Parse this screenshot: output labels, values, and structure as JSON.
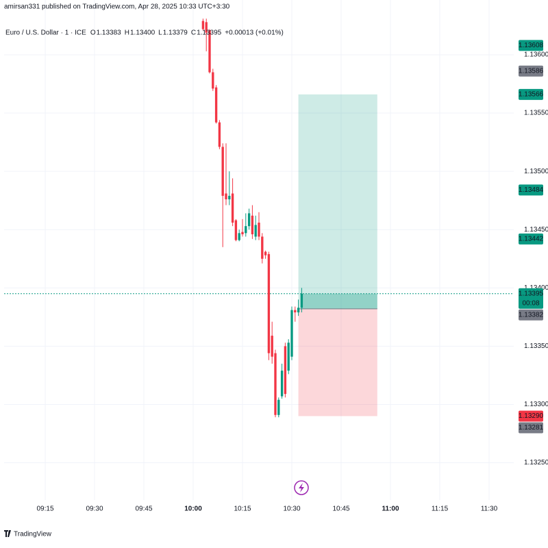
{
  "chart_data": {
    "type": "candlestick",
    "header": "amirsan331 published on TradingView.com, Apr 28, 2025 10:33 UTC+3:30",
    "title": "Euro / U.S. Dollar · 1 · ICE",
    "legend": [
      {
        "key": "O",
        "value": 1.13383,
        "label": "1.13383"
      },
      {
        "key": "H",
        "value": 1.134,
        "label": "1.13400"
      },
      {
        "key": "L",
        "value": 1.13379,
        "label": "1.13379"
      },
      {
        "key": "C",
        "value": 1.13395,
        "label": "1.13395"
      }
    ],
    "change_label": "+0.00013 (+0.01%)",
    "up_color": "#089981",
    "down_color": "#f23645",
    "x": [
      "10:03",
      "10:04",
      "10:05",
      "10:06",
      "10:07",
      "10:08",
      "10:09",
      "10:10",
      "10:11",
      "10:12",
      "10:13",
      "10:14",
      "10:15",
      "10:16",
      "10:17",
      "10:18",
      "10:19",
      "10:20",
      "10:21",
      "10:22",
      "10:23",
      "10:24",
      "10:25",
      "10:26",
      "10:27",
      "10:28",
      "10:29",
      "10:30",
      "10:31",
      "10:32",
      "10:33"
    ],
    "open": [
      1.13629,
      1.13628,
      1.13621,
      1.13585,
      1.13572,
      1.13542,
      1.13521,
      1.13481,
      1.13476,
      1.13481,
      1.13458,
      1.13441,
      1.13448,
      1.13447,
      1.13453,
      1.13462,
      1.13444,
      1.13456,
      1.13444,
      1.13431,
      1.13429,
      1.13359,
      1.13344,
      1.13291,
      1.13307,
      1.1335,
      1.13329,
      1.13341,
      1.13381,
      1.13379,
      1.13383
    ],
    "high": [
      1.13631,
      1.13631,
      1.13622,
      1.13588,
      1.13574,
      1.13544,
      1.13524,
      1.13524,
      1.135,
      1.13494,
      1.13459,
      1.1345,
      1.13459,
      1.13464,
      1.13468,
      1.13471,
      1.13462,
      1.13465,
      1.13447,
      1.13432,
      1.13431,
      1.13371,
      1.13347,
      1.13306,
      1.13335,
      1.13353,
      1.13356,
      1.13384,
      1.13384,
      1.1339,
      1.134
    ],
    "low": [
      1.13621,
      1.13603,
      1.13584,
      1.13569,
      1.13541,
      1.13519,
      1.13435,
      1.13471,
      1.13471,
      1.13453,
      1.1344,
      1.1344,
      1.13444,
      1.13444,
      1.1345,
      1.13442,
      1.13441,
      1.13441,
      1.13421,
      1.13425,
      1.13338,
      1.13335,
      1.13289,
      1.13289,
      1.13305,
      1.13306,
      1.13326,
      1.13338,
      1.13371,
      1.13376,
      1.13379
    ],
    "close": [
      1.13622,
      1.13619,
      1.13585,
      1.13571,
      1.13542,
      1.13521,
      1.13479,
      1.13476,
      1.13479,
      1.13456,
      1.13441,
      1.13447,
      1.13446,
      1.13453,
      1.13464,
      1.13446,
      1.13454,
      1.13444,
      1.13425,
      1.13428,
      1.13344,
      1.13341,
      1.13291,
      1.13304,
      1.13329,
      1.13309,
      1.13353,
      1.13381,
      1.13379,
      1.13383,
      1.13395
    ],
    "xlim": [
      "09:02:30",
      "11:37:30"
    ],
    "xticks": [
      "09:15",
      "09:30",
      "09:45",
      "10:00",
      "10:15",
      "10:30",
      "10:45",
      "11:00",
      "11:15",
      "11:30"
    ],
    "ylim": [
      1.13218,
      1.13647
    ],
    "yticks": [
      {
        "value": 1.1325,
        "label": "1.13250"
      },
      {
        "value": 1.133,
        "label": "1.13300"
      },
      {
        "value": 1.1335,
        "label": "1.13350"
      },
      {
        "value": 1.134,
        "label": "1.13400"
      },
      {
        "value": 1.1345,
        "label": "1.13450"
      },
      {
        "value": 1.135,
        "label": "1.13500"
      },
      {
        "value": 1.1355,
        "label": "1.13550"
      },
      {
        "value": 1.136,
        "label": "1.13600"
      }
    ],
    "grid": true,
    "position": {
      "start": "10:32",
      "end": "10:56",
      "entry": 1.13382,
      "target": 1.13566,
      "stop": 1.1329
    },
    "current_price": {
      "value": 1.13395,
      "label": "1.13395",
      "countdown": "00:08",
      "color": "#089981"
    },
    "price_labels": [
      {
        "value": 1.13608,
        "label": "1.13608",
        "color": "#089981"
      },
      {
        "value": 1.13586,
        "label": "1.13586",
        "color": "#787b86"
      },
      {
        "value": 1.13566,
        "label": "1.13566",
        "color": "#089981"
      },
      {
        "value": 1.13484,
        "label": "1.13484",
        "color": "#089981"
      },
      {
        "value": 1.13442,
        "label": "1.13442",
        "color": "#089981"
      },
      {
        "value": 1.13382,
        "label": "1.13382",
        "color": "#787b86"
      },
      {
        "value": 1.1329,
        "label": "1.13290",
        "color": "#f23645"
      },
      {
        "value": 1.13281,
        "label": "1.13281",
        "color": "#787b86"
      }
    ],
    "footer": "TradingView"
  }
}
